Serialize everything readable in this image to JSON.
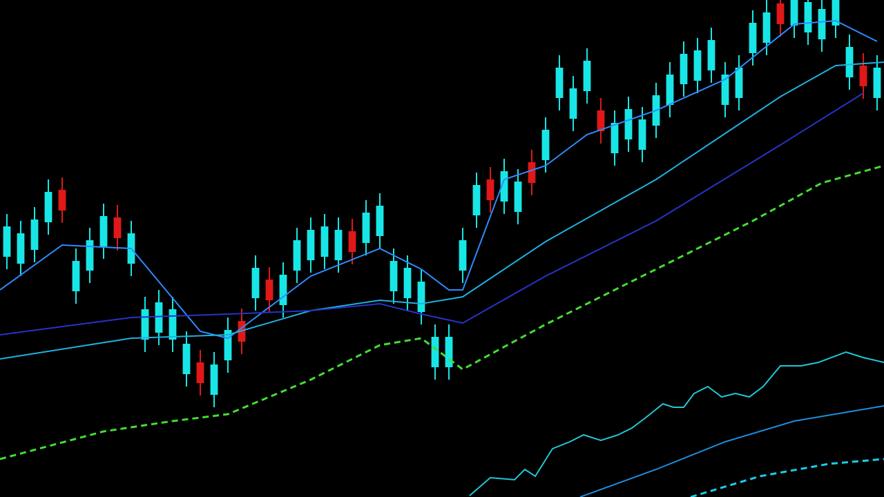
{
  "chart_data": {
    "type": "candlestick",
    "xlim": [
      -0.5,
      63.5
    ],
    "ylim": [
      0,
      720
    ],
    "background": "#000000",
    "candles": {
      "up_color": "#18e6e6",
      "down_color": "#e01818",
      "open": [
        348,
        338,
        358,
        398,
        445,
        298,
        328,
        363,
        405,
        338,
        228,
        238,
        228,
        178,
        195,
        148,
        198,
        255,
        288,
        315,
        278,
        328,
        343,
        348,
        343,
        385,
        368,
        378,
        298,
        288,
        268,
        188,
        188,
        328,
        408,
        460,
        428,
        413,
        485,
        488,
        578,
        548,
        588,
        560,
        498,
        518,
        503,
        538,
        568,
        598,
        603,
        618,
        568,
        578,
        643,
        658,
        715,
        683,
        673,
        663,
        683,
        608,
        625,
        578
      ],
      "high": [
        410,
        400,
        420,
        460,
        463,
        360,
        390,
        425,
        423,
        400,
        290,
        300,
        290,
        240,
        213,
        210,
        260,
        273,
        350,
        333,
        340,
        390,
        405,
        410,
        405,
        403,
        430,
        440,
        360,
        350,
        330,
        250,
        250,
        390,
        470,
        478,
        490,
        475,
        503,
        550,
        640,
        610,
        650,
        578,
        560,
        580,
        565,
        600,
        630,
        660,
        665,
        680,
        630,
        640,
        705,
        720,
        733,
        745,
        735,
        725,
        745,
        670,
        643,
        640
      ],
      "low": [
        330,
        320,
        340,
        380,
        397,
        280,
        310,
        345,
        357,
        320,
        210,
        220,
        210,
        160,
        147,
        130,
        180,
        207,
        270,
        267,
        260,
        310,
        325,
        330,
        325,
        337,
        350,
        360,
        280,
        270,
        250,
        170,
        170,
        310,
        390,
        412,
        410,
        395,
        437,
        470,
        560,
        530,
        570,
        512,
        480,
        500,
        485,
        520,
        550,
        580,
        585,
        600,
        550,
        560,
        625,
        640,
        667,
        665,
        655,
        645,
        665,
        590,
        577,
        560
      ],
      "close": [
        392,
        382,
        402,
        442,
        415,
        342,
        372,
        407,
        375,
        382,
        272,
        282,
        272,
        222,
        165,
        192,
        242,
        225,
        332,
        285,
        322,
        372,
        387,
        392,
        387,
        355,
        412,
        422,
        342,
        332,
        312,
        232,
        232,
        372,
        452,
        430,
        472,
        457,
        455,
        532,
        622,
        592,
        632,
        530,
        542,
        562,
        547,
        582,
        612,
        642,
        647,
        662,
        612,
        622,
        687,
        702,
        685,
        727,
        717,
        707,
        727,
        652,
        595,
        622
      ]
    },
    "series": [
      {
        "color": "#2e8cff",
        "dashed": false,
        "x": [
          -0.5,
          4,
          9,
          14,
          16,
          18,
          22,
          27,
          30,
          32,
          33,
          36,
          39,
          42,
          47,
          52,
          57,
          60,
          63
        ],
        "values": [
          300,
          365,
          360,
          240,
          230,
          260,
          320,
          360,
          330,
          300,
          300,
          460,
          480,
          525,
          560,
          605,
          685,
          690,
          660
        ]
      },
      {
        "color": "#1fb0e0",
        "dashed": false,
        "x": [
          -0.5,
          9,
          16,
          22,
          27,
          30,
          33,
          39,
          47,
          56,
          60,
          63.5
        ],
        "values": [
          200,
          230,
          235,
          270,
          285,
          280,
          290,
          370,
          460,
          580,
          625,
          630
        ]
      },
      {
        "color": "#2733c8",
        "dashed": false,
        "x": [
          -0.5,
          9,
          16,
          22,
          27,
          30,
          33,
          39,
          47,
          56,
          62
        ],
        "values": [
          235,
          260,
          265,
          270,
          280,
          265,
          252,
          320,
          400,
          510,
          585
        ]
      },
      {
        "color": "#44dd33",
        "dashed": true,
        "x": [
          -0.5,
          7,
          12,
          16,
          22,
          27,
          30,
          33,
          39,
          47,
          54,
          59,
          63.5
        ],
        "values": [
          55,
          95,
          110,
          120,
          170,
          220,
          230,
          185,
          250,
          330,
          400,
          455,
          480
        ]
      },
      {
        "color": "#22c8d8",
        "dashed": false,
        "x": [
          33.5,
          35,
          36.75,
          37.5,
          38.25,
          39.5,
          40.75,
          41.75,
          43,
          44.25,
          45.25,
          46.25,
          47.5,
          48.25,
          49,
          49.75,
          50.75,
          51.75,
          52.75,
          53.75,
          54.75,
          56,
          57.5,
          58.75,
          60.75,
          62,
          63.5
        ],
        "values": [
          2,
          28,
          25,
          40,
          30,
          70,
          80,
          90,
          82,
          90,
          100,
          115,
          135,
          130,
          130,
          150,
          160,
          145,
          150,
          145,
          160,
          190,
          190,
          195,
          210,
          202,
          195
        ]
      },
      {
        "color": "#1a8fe0",
        "dashed": false,
        "x": [
          41.5,
          47,
          52,
          57,
          63.5
        ],
        "values": [
          0,
          40,
          80,
          110,
          132
        ]
      },
      {
        "color": "#18d0e8",
        "dashed": true,
        "x": [
          49.5,
          54.5,
          59.5,
          63.5
        ],
        "values": [
          0,
          30,
          48,
          55
        ]
      }
    ]
  }
}
